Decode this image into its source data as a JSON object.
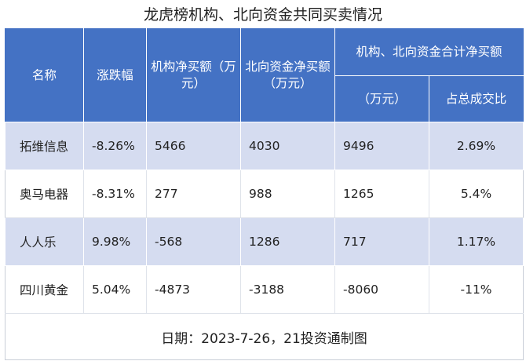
{
  "title": "龙虎榜机构、北向资金共同买卖情况",
  "headers": {
    "name": "名称",
    "change": "涨跌幅",
    "inst_net": "机构净买额（万元）",
    "north_net": "北向资金净买额（万元）",
    "combined_group": "机构、北向资金合计净买额",
    "combined_unit": "（万元）",
    "ratio": "占总成交比"
  },
  "rows": [
    {
      "name": "拓维信息",
      "change": "-8.26%",
      "inst_net": "5466",
      "north_net": "4030",
      "combined": "9496",
      "ratio": "2.69%"
    },
    {
      "name": "奥马电器",
      "change": "-8.31%",
      "inst_net": "277",
      "north_net": "988",
      "combined": "1265",
      "ratio": "5.4%"
    },
    {
      "name": "人人乐",
      "change": "9.98%",
      "inst_net": "-568",
      "north_net": "1286",
      "combined": "717",
      "ratio": "1.17%"
    },
    {
      "name": "四川黄金",
      "change": "5.04%",
      "inst_net": "-4873",
      "north_net": "-3188",
      "combined": "-8060",
      "ratio": "-11%"
    }
  ],
  "footer": "日期：2023-7-26，21投资通制图",
  "colors": {
    "header_bg": "#4472c4",
    "alt_row_bg": "#d5dcf0"
  }
}
